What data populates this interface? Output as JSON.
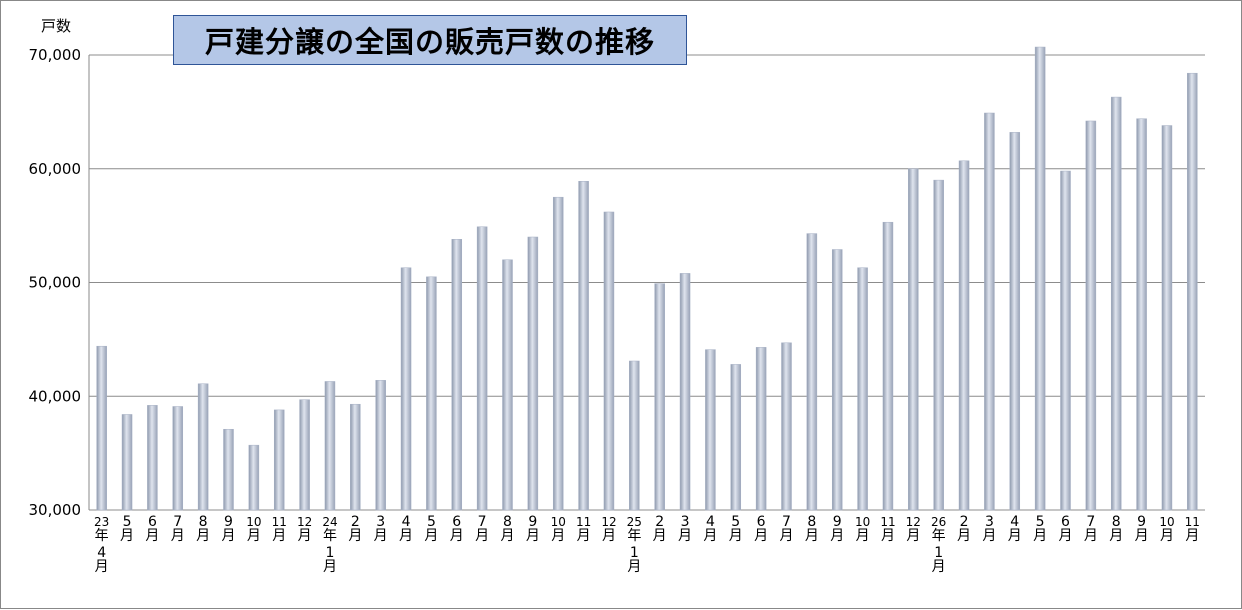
{
  "chart_data": {
    "type": "bar",
    "title": "戸建分譲の全国の販売戸数の推移",
    "ylabel": "戸数",
    "xlabel": "",
    "ylim": [
      30000,
      70000
    ],
    "yticks": [
      "30,000",
      "40,000",
      "50,000",
      "60,000",
      "70,000"
    ],
    "grid": true,
    "legend": "none",
    "bar_color": "#a6b0c4",
    "categories": [
      "23年4月",
      "5月",
      "6月",
      "7月",
      "8月",
      "9月",
      "10月",
      "11月",
      "12月",
      "24年1月",
      "2月",
      "3月",
      "4月",
      "5月",
      "6月",
      "7月",
      "8月",
      "9月",
      "10月",
      "11月",
      "12月",
      "25年1月",
      "2月",
      "3月",
      "4月",
      "5月",
      "6月",
      "7月",
      "8月",
      "9月",
      "10月",
      "11月",
      "12月",
      "26年1月",
      "2月",
      "3月",
      "4月",
      "5月",
      "6月",
      "7月",
      "8月",
      "9月",
      "10月",
      "11月"
    ],
    "values": [
      44400,
      38400,
      39200,
      39100,
      41100,
      37100,
      35700,
      38800,
      39700,
      41300,
      39300,
      41400,
      51300,
      50500,
      53800,
      54900,
      52000,
      54000,
      57500,
      58900,
      56200,
      43100,
      49900,
      50800,
      44100,
      42800,
      44300,
      44700,
      54300,
      52900,
      51300,
      55300,
      60000,
      59000,
      60700,
      64900,
      63200,
      70700,
      59800,
      64200,
      66300,
      64400,
      63800,
      68400
    ]
  }
}
